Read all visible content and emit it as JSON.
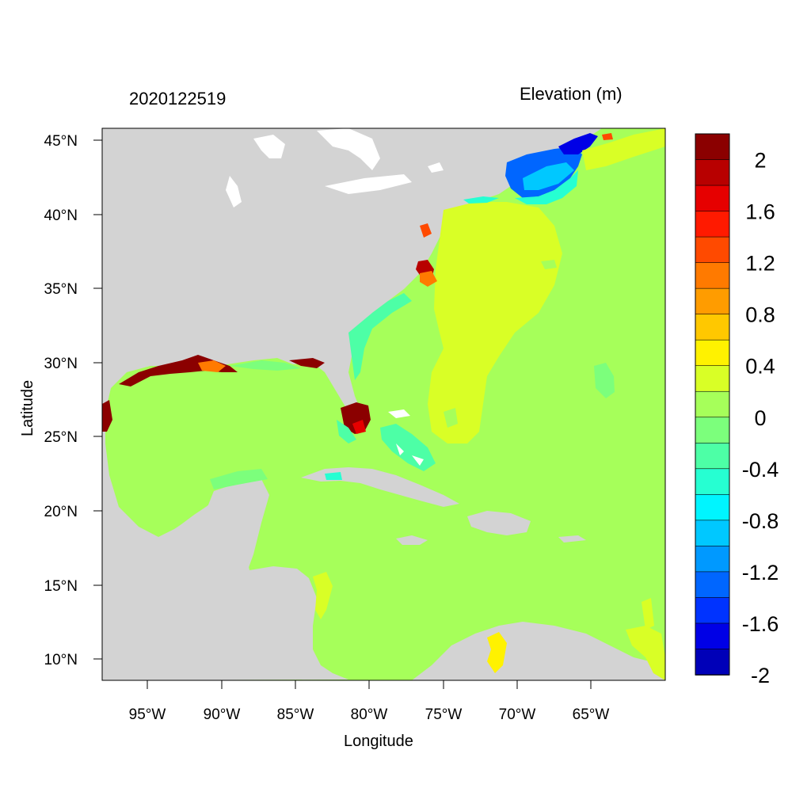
{
  "map": {
    "timestamp": "2020122519",
    "title": "Elevation (m)",
    "xlabel": "Longitude",
    "ylabel": "Latitude",
    "lon_ticks": [
      "95°W",
      "90°W",
      "85°W",
      "80°W",
      "75°W",
      "70°W",
      "65°W"
    ],
    "lat_ticks": [
      "45°N",
      "40°N",
      "35°N",
      "30°N",
      "25°N",
      "20°N",
      "15°N",
      "10°N"
    ],
    "land_color": "#d3d3d3",
    "ocean_color": "#a6ff5a"
  },
  "colorbar": {
    "labels": [
      "2",
      "1.6",
      "1.2",
      "0.8",
      "0.4",
      "0",
      "-0.4",
      "-0.8",
      "-1.2",
      "-1.6",
      "-2"
    ],
    "colors": [
      "#8b0000",
      "#b80000",
      "#e60000",
      "#ff1a00",
      "#ff4a00",
      "#ff7a00",
      "#ff9c00",
      "#ffc800",
      "#fff200",
      "#d9ff26",
      "#a6ff5a",
      "#7cff7c",
      "#4dffa6",
      "#26ffd2",
      "#00f5ff",
      "#00c8ff",
      "#0099ff",
      "#0066ff",
      "#0033ff",
      "#0000e6",
      "#0000b8"
    ]
  }
}
